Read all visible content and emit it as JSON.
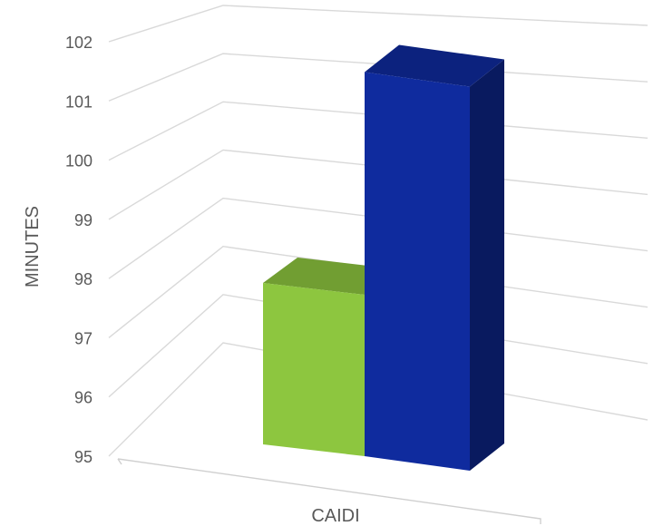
{
  "chart_data": {
    "type": "bar",
    "style": "3d-clustered-column",
    "categories": [
      "CAIDI"
    ],
    "series": [
      {
        "values": [
          97.9
        ],
        "color": "#8dc63f"
      },
      {
        "values": [
          101.9
        ],
        "color": "#0f2b9e"
      }
    ],
    "ylabel": "MINUTES",
    "xlabel": "",
    "ylim": [
      95,
      102
    ],
    "yticks": [
      95,
      96,
      97,
      98,
      99,
      100,
      101,
      102
    ],
    "grid": true,
    "legend": "none"
  }
}
